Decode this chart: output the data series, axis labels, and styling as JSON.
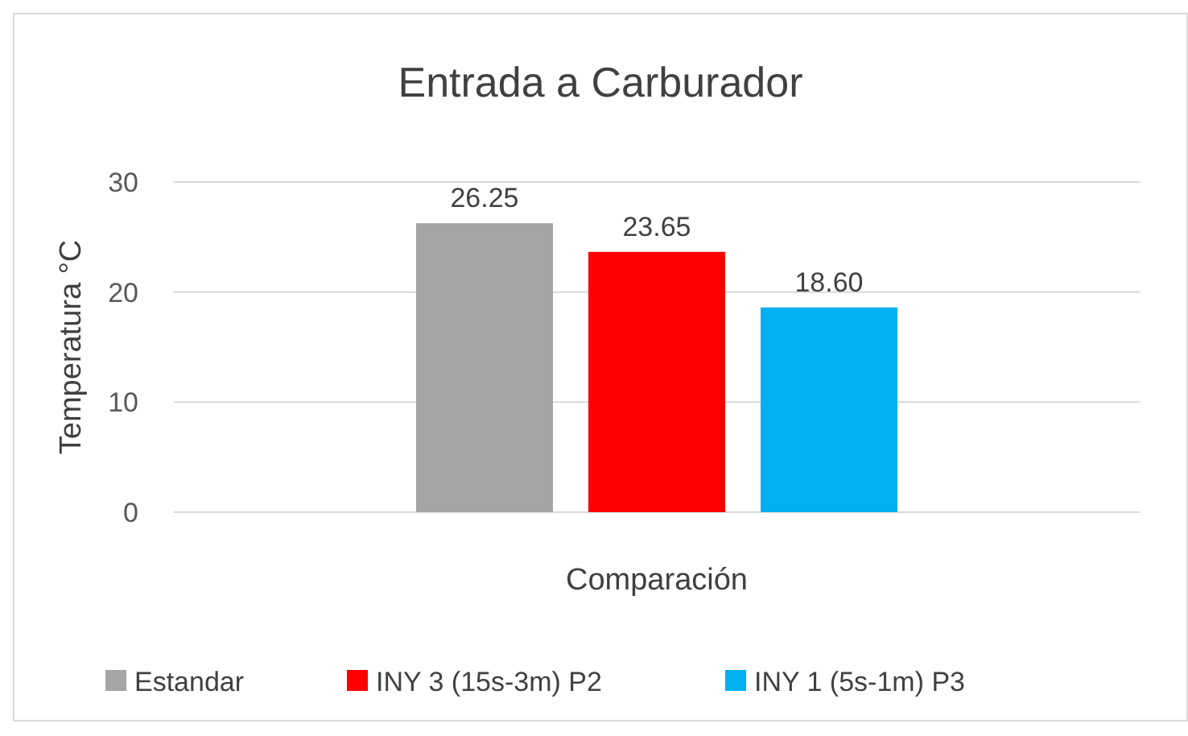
{
  "chart_data": {
    "type": "bar",
    "title": "Entrada a Carburador",
    "ylabel": "Temperatura °C",
    "categories": [
      "Comparación"
    ],
    "series": [
      {
        "name": "Estandar",
        "color": "#a5a5a5",
        "values": [
          26.25
        ],
        "value_labels": [
          "26.25"
        ]
      },
      {
        "name": "INY 3 (15s-3m) P2",
        "color": "#ff0000",
        "values": [
          23.65
        ],
        "value_labels": [
          "23.65"
        ]
      },
      {
        "name": "INY 1 (5s-1m) P3",
        "color": "#00b0f0",
        "values": [
          18.6
        ],
        "value_labels": [
          "18.60"
        ]
      }
    ],
    "ylim": [
      0,
      30
    ],
    "yticks": [
      0,
      10,
      20,
      30
    ],
    "grid": "y",
    "legend": "bottom"
  }
}
